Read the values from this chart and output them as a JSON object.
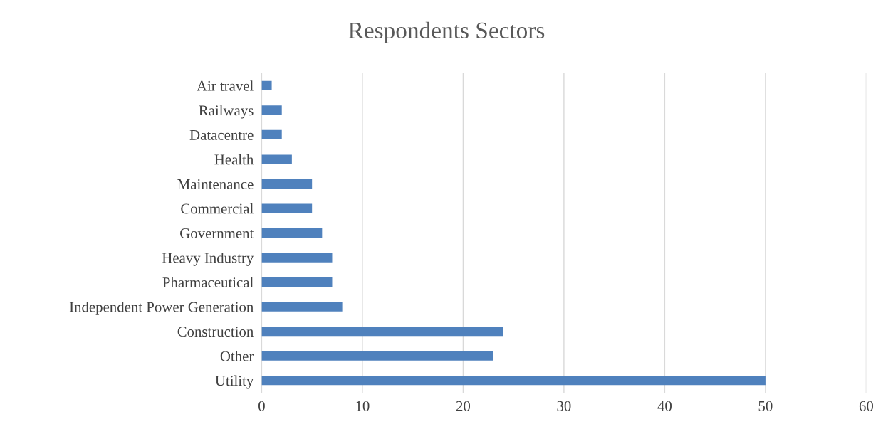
{
  "chart_data": {
    "type": "bar",
    "orientation": "horizontal",
    "title": "Respondents Sectors",
    "categories": [
      "Air travel",
      "Railways",
      "Datacentre",
      "Health",
      "Maintenance",
      "Commercial",
      "Government",
      "Heavy Industry",
      "Pharmaceutical",
      "Independent Power Generation",
      "Construction",
      "Other",
      "Utility"
    ],
    "values": [
      1,
      2,
      2,
      3,
      5,
      5,
      6,
      7,
      7,
      8,
      24,
      23,
      50
    ],
    "color": "#4f81bd",
    "xlim": [
      0,
      60
    ],
    "xticks": [
      0,
      10,
      20,
      30,
      40,
      50,
      60
    ],
    "grid": "x"
  }
}
